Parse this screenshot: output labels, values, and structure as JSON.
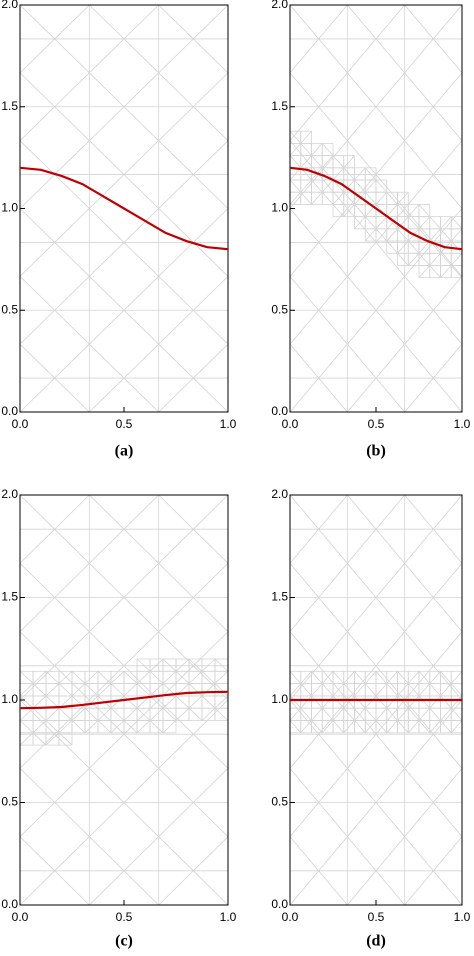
{
  "chart_data": [
    {
      "type": "line",
      "label": "(a)",
      "color": "#c00000",
      "x": [
        0,
        0.1,
        0.2,
        0.3,
        0.4,
        0.5,
        0.6,
        0.7,
        0.8,
        0.9,
        1
      ],
      "values": [
        1.2,
        1.19,
        1.16,
        1.12,
        1.06,
        1.0,
        0.94,
        0.88,
        0.84,
        0.81,
        0.8
      ],
      "xlim": [
        0,
        1
      ],
      "ylim": [
        0,
        2
      ],
      "xticks": [
        {
          "value": 0,
          "label": "0.0"
        },
        {
          "value": 0.5,
          "label": "0.5"
        },
        {
          "value": 1,
          "label": "1.0"
        }
      ],
      "yticks": [
        {
          "value": 0,
          "label": "0.0"
        },
        {
          "value": 0.5,
          "label": "0.5"
        },
        {
          "value": 1,
          "label": "1.0"
        },
        {
          "value": 1.5,
          "label": "1.5"
        },
        {
          "value": 2,
          "label": "2.0"
        }
      ]
    },
    {
      "type": "line",
      "label": "(b)",
      "color": "#c00000",
      "x": [
        0,
        0.1,
        0.2,
        0.3,
        0.4,
        0.5,
        0.6,
        0.7,
        0.8,
        0.9,
        1
      ],
      "values": [
        1.2,
        1.19,
        1.16,
        1.12,
        1.06,
        1.0,
        0.94,
        0.88,
        0.84,
        0.81,
        0.8
      ],
      "xlim": [
        0,
        1
      ],
      "ylim": [
        0,
        2
      ],
      "xticks": [
        {
          "value": 0,
          "label": "0.0"
        },
        {
          "value": 0.5,
          "label": "0.5"
        },
        {
          "value": 1,
          "label": "1.0"
        }
      ],
      "yticks": [
        {
          "value": 0,
          "label": "0.0"
        },
        {
          "value": 0.5,
          "label": "0.5"
        },
        {
          "value": 1,
          "label": "1.0"
        },
        {
          "value": 1.5,
          "label": "1.5"
        },
        {
          "value": 2,
          "label": "2.0"
        }
      ]
    },
    {
      "type": "line",
      "label": "(c)",
      "color": "#c00000",
      "x": [
        0,
        0.1,
        0.2,
        0.3,
        0.4,
        0.5,
        0.6,
        0.7,
        0.8,
        0.9,
        1
      ],
      "values": [
        0.96,
        0.962,
        0.966,
        0.976,
        0.988,
        1.0,
        1.012,
        1.024,
        1.034,
        1.038,
        1.04
      ],
      "xlim": [
        0,
        1
      ],
      "ylim": [
        0,
        2
      ],
      "xticks": [
        {
          "value": 0,
          "label": "0.0"
        },
        {
          "value": 0.5,
          "label": "0.5"
        },
        {
          "value": 1,
          "label": "1.0"
        }
      ],
      "yticks": [
        {
          "value": 0,
          "label": "0.0"
        },
        {
          "value": 0.5,
          "label": "0.5"
        },
        {
          "value": 1,
          "label": "1.0"
        },
        {
          "value": 1.5,
          "label": "1.5"
        },
        {
          "value": 2,
          "label": "2.0"
        }
      ]
    },
    {
      "type": "line",
      "label": "(d)",
      "color": "#c00000",
      "x": [
        0,
        0.1,
        0.2,
        0.3,
        0.4,
        0.5,
        0.6,
        0.7,
        0.8,
        0.9,
        1
      ],
      "values": [
        1.0,
        1.0,
        1.0,
        1.0,
        1.0,
        1.0,
        1.0,
        1.0,
        1.0,
        1.0,
        1.0
      ],
      "xlim": [
        0,
        1
      ],
      "ylim": [
        0,
        2
      ],
      "xticks": [
        {
          "value": 0,
          "label": "0.0"
        },
        {
          "value": 0.5,
          "label": "0.5"
        },
        {
          "value": 1,
          "label": "1.0"
        }
      ],
      "yticks": [
        {
          "value": 0,
          "label": "0.0"
        },
        {
          "value": 0.5,
          "label": "0.5"
        },
        {
          "value": 1,
          "label": "1.0"
        },
        {
          "value": 1.5,
          "label": "1.5"
        },
        {
          "value": 2,
          "label": "2.0"
        }
      ]
    }
  ]
}
